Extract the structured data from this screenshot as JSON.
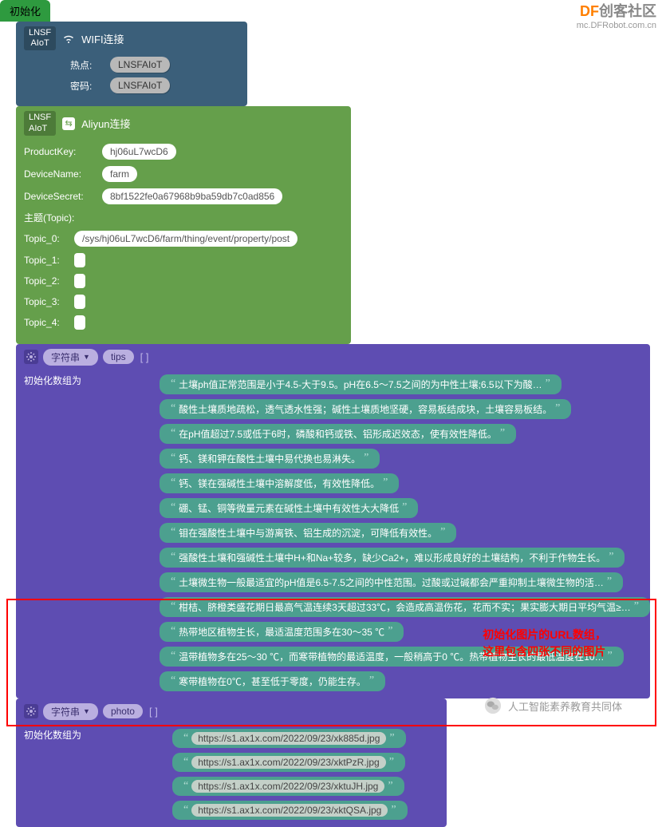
{
  "watermark": {
    "line1_df": "DF",
    "line1_rest": "创客社区",
    "line2": "mc.DFRobot.com.cn"
  },
  "init": {
    "label": "初始化"
  },
  "wifi": {
    "module": "LNSF\nAIoT",
    "title": "WIFI连接",
    "hotspot_label": "热点:",
    "hotspot_value": "LNSFAIoT",
    "password_label": "密码:",
    "password_value": "LNSFAIoT"
  },
  "aliyun": {
    "module": "LNSF\nAIoT",
    "title": "Aliyun连接",
    "productkey_label": "ProductKey:",
    "productkey_value": "hj06uL7wcD6",
    "devicename_label": "DeviceName:",
    "devicename_value": "farm",
    "devicesecret_label": "DeviceSecret:",
    "devicesecret_value": "8bf1522fe0a67968b9ba59db7c0ad856",
    "topic_header": "主题(Topic):",
    "topics": [
      {
        "label": "Topic_0:",
        "value": "/sys/hj06uL7wcD6/farm/thing/event/property/post"
      },
      {
        "label": "Topic_1:",
        "value": ""
      },
      {
        "label": "Topic_2:",
        "value": ""
      },
      {
        "label": "Topic_3:",
        "value": ""
      },
      {
        "label": "Topic_4:",
        "value": ""
      }
    ]
  },
  "tips_block": {
    "type_label": "字符串",
    "var_name": "tips",
    "brackets": "[ ]",
    "side_label": "初始化数组为",
    "items": [
      "土壤ph值正常范围是小于4.5-大于9.5。pH在6.5～7.5之间的为中性土壤;6.5以下为酸…",
      "酸性土壤质地疏松，透气透水性强；碱性土壤质地坚硬，容易板结成块，土壤容易板结。",
      "在pH值超过7.5或低于6时，磷酸和钙或铁、铝形成迟效态，使有效性降低。",
      "钙、镁和钾在酸性土壤中易代换也易淋失。",
      "钙、镁在强碱性土壤中溶解度低，有效性降低。",
      "硼、锰、铜等微量元素在碱性土壤中有效性大大降低",
      "钼在强酸性土壤中与游离铁、铝生成的沉淀，可降低有效性。",
      "强酸性土壤和强碱性土壤中H+和Na+较多，缺少Ca2+，难以形成良好的土壤结构，不利于作物生长。",
      "土壤微生物一般最适宜的pH值是6.5-7.5之间的中性范围。过酸或过碱都会严重抑制土壤微生物的活…",
      "柑桔、脐橙类盛花期日最高气温连续3天超过33℃，会造成高温伤花，花而不实；果实膨大期日平均气温≥…",
      "热带地区植物生长，最适温度范围多在30～35 ℃",
      "温带植物多在25～30 ℃，而寒带植物的最适温度，一般稍高于0 ℃。热带植物生长的最低温度在10…",
      "寒带植物在0℃，甚至低于零度，仍能生存。"
    ]
  },
  "photo_block": {
    "type_label": "字符串",
    "var_name": "photo",
    "brackets": "[ ]",
    "side_label": "初始化数组为",
    "items": [
      "https://s1.ax1x.com/2022/09/23/xk885d.jpg",
      "https://s1.ax1x.com/2022/09/23/xktPzR.jpg",
      "https://s1.ax1x.com/2022/09/23/xktuJH.jpg",
      "https://s1.ax1x.com/2022/09/23/xktQSA.jpg"
    ]
  },
  "annotation": {
    "line1": "初始化图片的URL数组，",
    "line2": "这里包含四张不同的图片"
  },
  "footer": {
    "text": "人工智能素养教育共同体"
  },
  "colors": {
    "green": "#5b9a3f",
    "green_inner": "#659f4b",
    "blue": "#3b5f7a",
    "purple": "#5e4db2",
    "teal": "#4ca08f",
    "red": "#ff0000",
    "orange": "#ff7f00"
  }
}
